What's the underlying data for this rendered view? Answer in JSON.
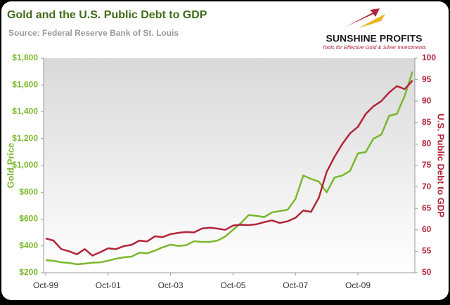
{
  "chart_data": {
    "type": "line",
    "title": "Gold and the U.S. Public Debt to GDP",
    "subtitle": "Source: Federal Reserve Bank of St. Louis",
    "logo": {
      "name": "SUNSHINE PROFITS",
      "tagline": "Tools for Effective Gold & Silver Investments"
    },
    "ylabel": "Gold Price",
    "y2label": "U.S. Public Debt to GDP",
    "categories": [
      "Oct-99",
      null,
      null,
      null,
      null,
      null,
      null,
      null,
      "Oct-01",
      null,
      null,
      null,
      null,
      null,
      null,
      null,
      "Oct-03",
      null,
      null,
      null,
      null,
      null,
      null,
      null,
      "Oct-05",
      null,
      null,
      null,
      null,
      null,
      null,
      null,
      "Oct-07",
      null,
      null,
      null,
      null,
      null,
      null,
      null,
      "Oct-09",
      null,
      null,
      null,
      null,
      null,
      null,
      null
    ],
    "series": [
      {
        "color": "#7ab82c",
        "axis": "y",
        "values": [
          294,
          289,
          278,
          273,
          263,
          268,
          275,
          278,
          289,
          305,
          315,
          320,
          350,
          345,
          365,
          390,
          410,
          400,
          405,
          435,
          430,
          430,
          440,
          470,
          520,
          570,
          630,
          625,
          615,
          650,
          660,
          670,
          750,
          925,
          900,
          880,
          800,
          910,
          925,
          960,
          1090,
          1100,
          1200,
          1230,
          1370,
          1385,
          1520,
          1700
        ]
      },
      {
        "color": "#b3243a",
        "axis": "y2",
        "values": [
          58,
          57.5,
          55.5,
          55,
          54.3,
          55.5,
          54,
          54.8,
          55.7,
          55.5,
          56.2,
          56.5,
          57.5,
          57.3,
          58.5,
          58.3,
          59,
          59.3,
          59.5,
          59.4,
          60.3,
          60.5,
          60.3,
          60,
          61,
          61.2,
          61.1,
          61.3,
          61.8,
          62.2,
          61.6,
          62,
          62.8,
          64.5,
          64.2,
          67.5,
          73.5,
          77,
          80,
          82.5,
          84,
          87,
          88.8,
          90,
          92,
          93.5,
          92.8,
          94.8
        ]
      }
    ],
    "ylim": [
      200,
      1800
    ],
    "yticks": [
      {
        "value": 200,
        "label": "$200"
      },
      {
        "value": 400,
        "label": "$400"
      },
      {
        "value": 600,
        "label": "$600"
      },
      {
        "value": 800,
        "label": "$800"
      },
      {
        "value": 1000,
        "label": "$1,000"
      },
      {
        "value": 1200,
        "label": "$1,200"
      },
      {
        "value": 1400,
        "label": "$1,400"
      },
      {
        "value": 1600,
        "label": "$1,600"
      },
      {
        "value": 1800,
        "label": "$1,800"
      }
    ],
    "y2lim": [
      50,
      100
    ],
    "y2ticks": [
      50,
      55,
      60,
      65,
      70,
      75,
      80,
      85,
      90,
      95,
      100
    ],
    "grid": false
  }
}
